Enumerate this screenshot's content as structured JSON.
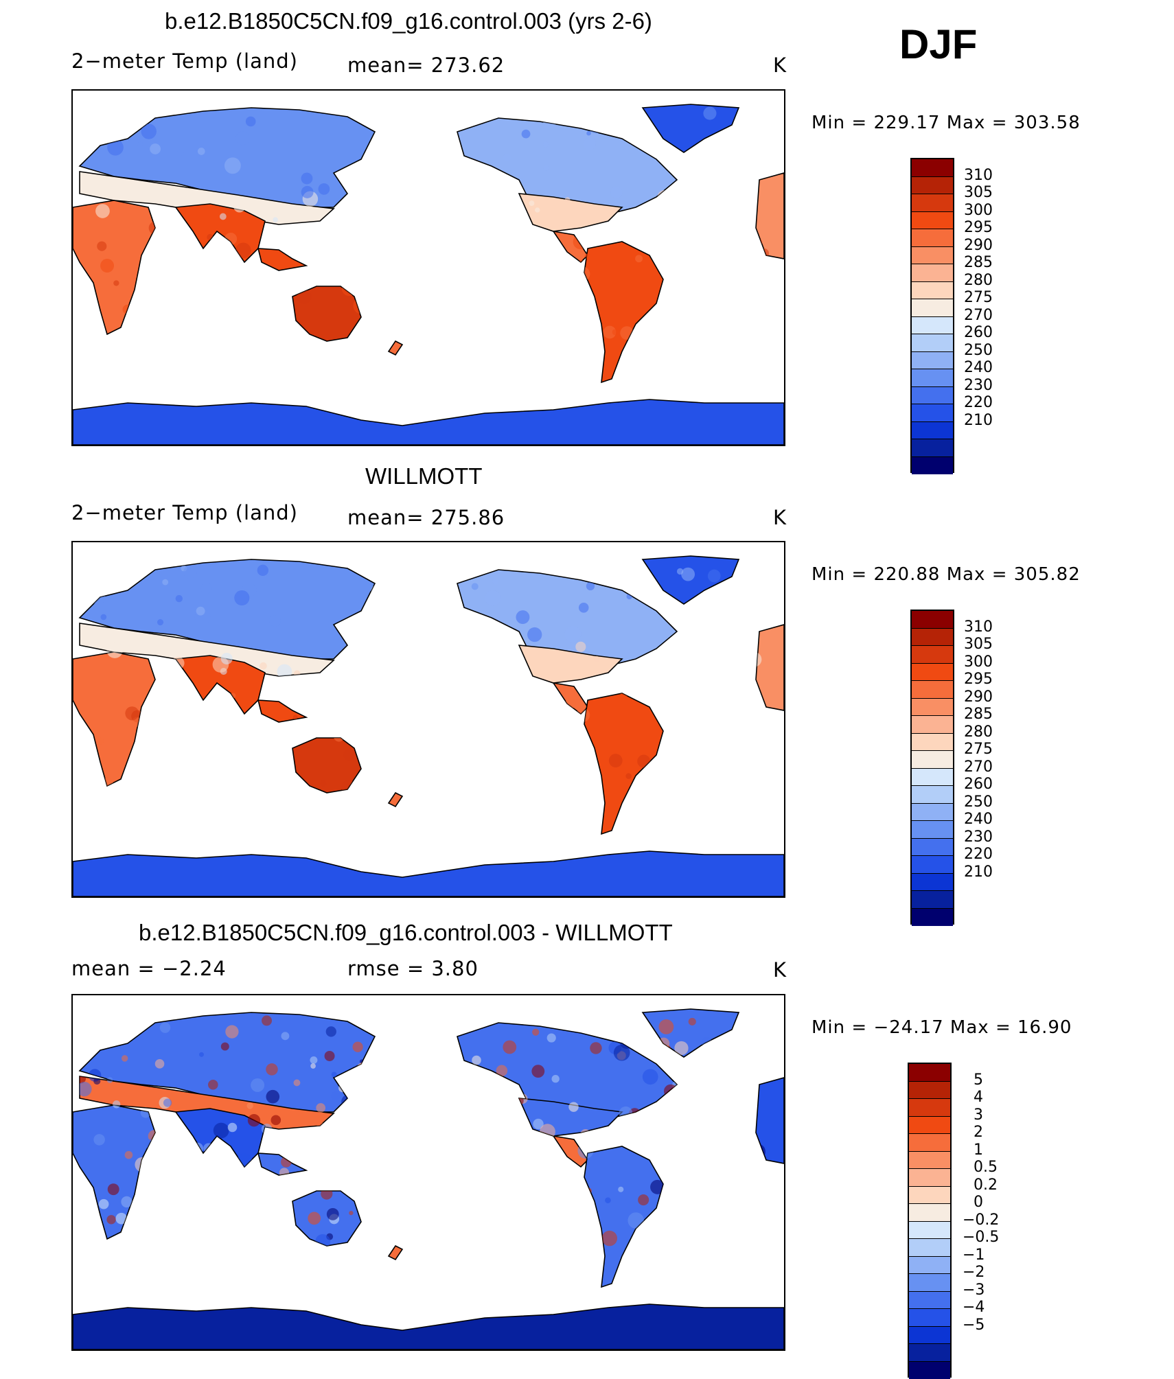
{
  "season": "DJF",
  "chart_data": [
    {
      "type": "heatmap",
      "title": "b.e12.B1850C5CN.f09_g16.control.003 (yrs 2-6)",
      "left_label": "2−meter Temp (land)",
      "center_label": "mean=  273.62",
      "right_label": "K",
      "min_max": "Min  =  229.17  Max  =  303.58",
      "colorbar": {
        "labels": [
          "310",
          "305",
          "300",
          "295",
          "290",
          "285",
          "280",
          "275",
          "270",
          "260",
          "250",
          "240",
          "230",
          "220",
          "210"
        ],
        "colors": [
          "#8b0000",
          "#b52306",
          "#d6390e",
          "#f04a12",
          "#f66d3b",
          "#f98f64",
          "#fbb393",
          "#fdd6bd",
          "#f7ece1",
          "#d5e7fb",
          "#b2cef8",
          "#8fb1f5",
          "#6791f2",
          "#4470ee",
          "#2552e8",
          "#0c35d4",
          "#07219e",
          "#00006e"
        ]
      }
    },
    {
      "type": "heatmap",
      "title": "WILLMOTT",
      "left_label": "2−meter Temp (land)",
      "center_label": "mean=  275.86",
      "right_label": "K",
      "min_max": "Min  =  220.88  Max  =  305.82",
      "colorbar": {
        "labels": [
          "310",
          "305",
          "300",
          "295",
          "290",
          "285",
          "280",
          "275",
          "270",
          "260",
          "250",
          "240",
          "230",
          "220",
          "210"
        ],
        "colors": [
          "#8b0000",
          "#b52306",
          "#d6390e",
          "#f04a12",
          "#f66d3b",
          "#f98f64",
          "#fbb393",
          "#fdd6bd",
          "#f7ece1",
          "#d5e7fb",
          "#b2cef8",
          "#8fb1f5",
          "#6791f2",
          "#4470ee",
          "#2552e8",
          "#0c35d4",
          "#07219e",
          "#00006e"
        ]
      }
    },
    {
      "type": "heatmap",
      "title": "b.e12.B1850C5CN.f09_g16.control.003 - WILLMOTT",
      "left_label": "mean  =     −2.24",
      "center_label": "rmse  =      3.80",
      "right_label": "K",
      "min_max": "Min  =  −24.17  Max  =     16.90",
      "colorbar": {
        "labels": [
          "5",
          "4",
          "3",
          "2",
          "1",
          "0.5",
          "0.2",
          "0",
          "−0.2",
          "−0.5",
          "−1",
          "−2",
          "−3",
          "−4",
          "−5"
        ],
        "colors": [
          "#8b0000",
          "#b52306",
          "#d6390e",
          "#f04a12",
          "#f66d3b",
          "#f98f64",
          "#fbb393",
          "#fdd6bd",
          "#f7ece1",
          "#d5e7fb",
          "#b2cef8",
          "#8fb1f5",
          "#6791f2",
          "#4470ee",
          "#2552e8",
          "#0c35d4",
          "#07219e",
          "#00006e"
        ]
      }
    }
  ]
}
